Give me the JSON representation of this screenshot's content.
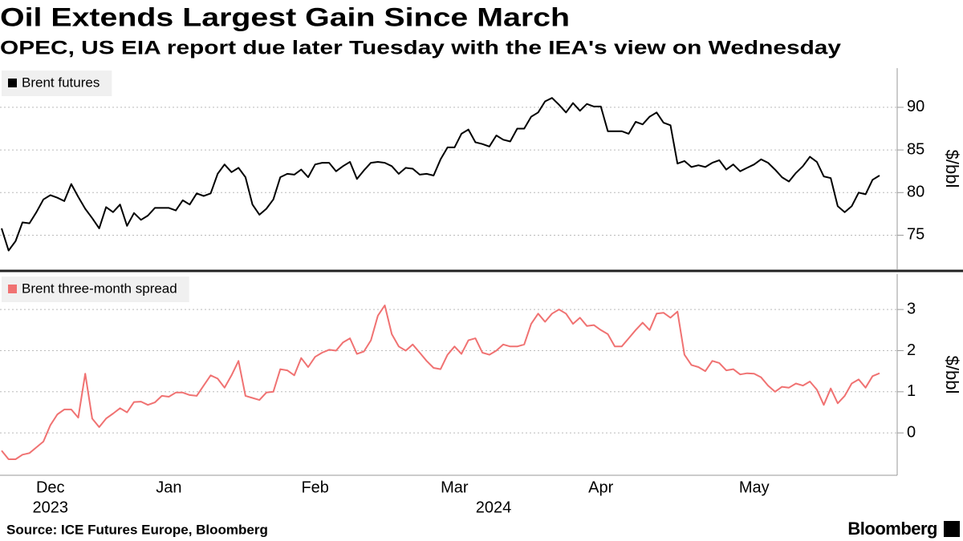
{
  "title": "Oil Extends Largest Gain Since March",
  "subtitle": "OPEC, US EIA report due later Tuesday with the IEA's view on Wednesday",
  "source": "Source: ICE Futures Europe, Bloomberg",
  "brand": "Bloomberg",
  "chart_data": [
    {
      "type": "line",
      "y_label": "$/bbl",
      "ylim": [
        71,
        94.6
      ],
      "yticks": [
        75,
        80,
        85,
        90
      ],
      "grid": true,
      "legend": "top-left",
      "series": [
        {
          "name": "Brent futures",
          "color": "#000000",
          "values": [
            75.8,
            73.2,
            74.3,
            76.5,
            76.4,
            77.7,
            79.2,
            79.7,
            79.4,
            79.0,
            81.0,
            79.5,
            78.1,
            77.0,
            75.8,
            78.3,
            77.7,
            78.6,
            76.1,
            77.6,
            76.8,
            77.3,
            78.2,
            78.2,
            78.2,
            77.9,
            79.1,
            78.6,
            79.9,
            79.6,
            79.9,
            82.2,
            83.3,
            82.4,
            82.9,
            81.8,
            78.6,
            77.4,
            78.1,
            79.2,
            81.8,
            82.2,
            82.1,
            82.7,
            81.8,
            83.3,
            83.5,
            83.5,
            82.5,
            83.1,
            83.6,
            81.6,
            82.6,
            83.5,
            83.6,
            83.5,
            83.1,
            82.2,
            82.9,
            82.8,
            82.1,
            82.2,
            82.0,
            83.9,
            85.3,
            85.3,
            86.9,
            87.4,
            85.9,
            85.7,
            85.4,
            86.7,
            86.2,
            86.0,
            87.5,
            87.5,
            88.9,
            89.4,
            90.7,
            91.1,
            90.3,
            89.4,
            90.5,
            89.6,
            90.4,
            90.1,
            90.1,
            87.2,
            87.2,
            87.2,
            86.9,
            88.3,
            88.0,
            88.9,
            89.4,
            88.2,
            87.9,
            83.4,
            83.7,
            83.0,
            83.2,
            83.0,
            83.5,
            83.8,
            82.7,
            83.3,
            82.5,
            82.9,
            83.3,
            83.9,
            83.5,
            82.7,
            81.8,
            81.3,
            82.3,
            83.1,
            84.2,
            83.6,
            81.9,
            81.7,
            78.4,
            77.7,
            78.4,
            80.0,
            79.8,
            81.5,
            82.0
          ]
        }
      ]
    },
    {
      "type": "line",
      "y_label": "$/bbl",
      "ylim": [
        -1.03,
        3.86
      ],
      "yticks": [
        0,
        1,
        2,
        3
      ],
      "grid": true,
      "legend": "top-left",
      "categories": [
        null,
        null,
        null,
        null,
        null,
        null,
        null,
        "Dec",
        null,
        null,
        null,
        null,
        null,
        null,
        null,
        null,
        null,
        null,
        null,
        null,
        null,
        null,
        null,
        null,
        "Jan",
        null,
        null,
        null,
        null,
        null,
        null,
        null,
        null,
        null,
        null,
        null,
        null,
        null,
        null,
        null,
        null,
        null,
        null,
        null,
        null,
        "Feb",
        null,
        null,
        null,
        null,
        null,
        null,
        null,
        null,
        null,
        null,
        null,
        null,
        null,
        null,
        null,
        null,
        null,
        null,
        null,
        "Mar",
        null,
        null,
        null,
        null,
        null,
        null,
        null,
        null,
        null,
        null,
        null,
        null,
        null,
        null,
        null,
        null,
        null,
        null,
        null,
        null,
        "Apr",
        null,
        null,
        null,
        null,
        null,
        null,
        null,
        null,
        null,
        null,
        null,
        null,
        null,
        null,
        null,
        null,
        null,
        null,
        null,
        null,
        null,
        "May",
        null,
        null,
        null,
        null,
        null,
        null,
        null,
        null,
        null,
        null,
        null,
        null,
        null,
        null,
        null,
        null,
        null,
        null
      ],
      "years": [
        "2023",
        "2024"
      ],
      "series": [
        {
          "name": "Brent three-month spread",
          "color": "#f07272",
          "values": [
            -0.43,
            -0.64,
            -0.64,
            -0.53,
            -0.49,
            -0.35,
            -0.21,
            0.19,
            0.45,
            0.57,
            0.57,
            0.37,
            1.44,
            0.35,
            0.14,
            0.35,
            0.47,
            0.6,
            0.5,
            0.75,
            0.76,
            0.68,
            0.74,
            0.9,
            0.88,
            0.98,
            0.98,
            0.92,
            0.9,
            1.15,
            1.4,
            1.32,
            1.1,
            1.4,
            1.75,
            0.9,
            0.85,
            0.8,
            0.98,
            1.0,
            1.55,
            1.52,
            1.4,
            1.82,
            1.6,
            1.85,
            1.95,
            2.02,
            2.0,
            2.2,
            2.3,
            1.92,
            1.98,
            2.25,
            2.85,
            3.1,
            2.4,
            2.1,
            2.0,
            2.15,
            1.95,
            1.75,
            1.58,
            1.55,
            1.9,
            2.1,
            1.92,
            2.25,
            2.3,
            1.95,
            1.9,
            2.0,
            2.15,
            2.1,
            2.1,
            2.15,
            2.65,
            2.9,
            2.7,
            2.9,
            3.0,
            2.9,
            2.65,
            2.8,
            2.6,
            2.62,
            2.5,
            2.4,
            2.1,
            2.1,
            2.3,
            2.5,
            2.68,
            2.5,
            2.9,
            2.92,
            2.8,
            2.95,
            1.9,
            1.65,
            1.6,
            1.5,
            1.75,
            1.7,
            1.52,
            1.55,
            1.42,
            1.45,
            1.44,
            1.35,
            1.15,
            1.0,
            1.12,
            1.1,
            1.2,
            1.15,
            1.25,
            1.05,
            0.68,
            1.08,
            0.72,
            0.9,
            1.2,
            1.3,
            1.1,
            1.38,
            1.45
          ]
        }
      ]
    }
  ]
}
